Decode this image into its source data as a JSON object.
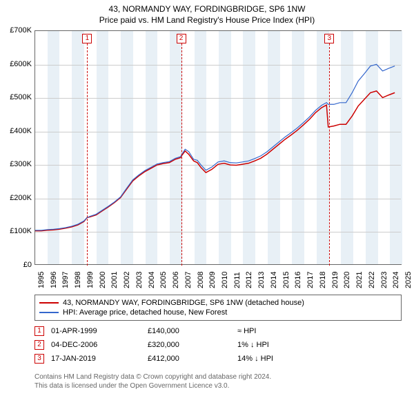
{
  "title_line1": "43, NORMANDY WAY, FORDINGBRIDGE, SP6 1NW",
  "title_line2": "Price paid vs. HM Land Registry's House Price Index (HPI)",
  "chart": {
    "type": "line",
    "background_color": "#ffffff",
    "border_color": "#666666",
    "shade_band_color": "#e8f0f6",
    "grid_color": "#cccccc",
    "x_min": 1995,
    "x_max": 2025,
    "x_tick_step": 1,
    "y_min": 0,
    "y_max": 700000,
    "y_tick_step": 100000,
    "y_tick_labels": [
      "£0",
      "£100K",
      "£200K",
      "£300K",
      "£400K",
      "£500K",
      "£600K",
      "£700K"
    ],
    "x_tick_labels": [
      "1995",
      "1996",
      "1997",
      "1998",
      "1999",
      "2000",
      "2001",
      "2002",
      "2003",
      "2004",
      "2005",
      "2006",
      "2007",
      "2008",
      "2009",
      "2010",
      "2011",
      "2012",
      "2013",
      "2014",
      "2015",
      "2016",
      "2017",
      "2018",
      "2019",
      "2020",
      "2021",
      "2022",
      "2023",
      "2024",
      "2025"
    ],
    "series": [
      {
        "name": "property",
        "color": "#cc0000",
        "width": 1.5,
        "points": [
          [
            1995.0,
            100000
          ],
          [
            1995.5,
            100000
          ],
          [
            1996.0,
            102000
          ],
          [
            1996.5,
            103000
          ],
          [
            1997.0,
            105000
          ],
          [
            1997.5,
            108000
          ],
          [
            1998.0,
            112000
          ],
          [
            1998.5,
            118000
          ],
          [
            1999.0,
            128000
          ],
          [
            1999.25,
            140000
          ],
          [
            1999.5,
            142000
          ],
          [
            2000.0,
            148000
          ],
          [
            2000.5,
            160000
          ],
          [
            2001.0,
            172000
          ],
          [
            2001.5,
            185000
          ],
          [
            2002.0,
            200000
          ],
          [
            2002.5,
            225000
          ],
          [
            2003.0,
            250000
          ],
          [
            2003.5,
            265000
          ],
          [
            2004.0,
            278000
          ],
          [
            2004.5,
            288000
          ],
          [
            2005.0,
            298000
          ],
          [
            2005.5,
            302000
          ],
          [
            2006.0,
            305000
          ],
          [
            2006.5,
            315000
          ],
          [
            2006.93,
            320000
          ],
          [
            2007.0,
            325000
          ],
          [
            2007.3,
            340000
          ],
          [
            2007.6,
            330000
          ],
          [
            2008.0,
            310000
          ],
          [
            2008.3,
            305000
          ],
          [
            2008.6,
            290000
          ],
          [
            2009.0,
            275000
          ],
          [
            2009.5,
            285000
          ],
          [
            2010.0,
            300000
          ],
          [
            2010.5,
            303000
          ],
          [
            2011.0,
            298000
          ],
          [
            2011.5,
            297000
          ],
          [
            2012.0,
            300000
          ],
          [
            2012.5,
            303000
          ],
          [
            2013.0,
            310000
          ],
          [
            2013.5,
            318000
          ],
          [
            2014.0,
            330000
          ],
          [
            2014.5,
            345000
          ],
          [
            2015.0,
            360000
          ],
          [
            2015.5,
            375000
          ],
          [
            2016.0,
            388000
          ],
          [
            2016.5,
            402000
          ],
          [
            2017.0,
            418000
          ],
          [
            2017.5,
            435000
          ],
          [
            2018.0,
            455000
          ],
          [
            2018.5,
            470000
          ],
          [
            2018.9,
            478000
          ],
          [
            2019.04,
            412000
          ],
          [
            2019.5,
            415000
          ],
          [
            2020.0,
            420000
          ],
          [
            2020.5,
            420000
          ],
          [
            2021.0,
            445000
          ],
          [
            2021.5,
            475000
          ],
          [
            2022.0,
            495000
          ],
          [
            2022.5,
            515000
          ],
          [
            2023.0,
            520000
          ],
          [
            2023.5,
            500000
          ],
          [
            2024.0,
            508000
          ],
          [
            2024.5,
            515000
          ]
        ]
      },
      {
        "name": "hpi",
        "color": "#3366cc",
        "width": 1.2,
        "points": [
          [
            1995.0,
            102000
          ],
          [
            1995.5,
            102000
          ],
          [
            1996.0,
            104000
          ],
          [
            1996.5,
            105000
          ],
          [
            1997.0,
            107000
          ],
          [
            1997.5,
            110000
          ],
          [
            1998.0,
            114000
          ],
          [
            1998.5,
            120000
          ],
          [
            1999.0,
            130000
          ],
          [
            1999.25,
            140000
          ],
          [
            1999.5,
            144000
          ],
          [
            2000.0,
            150000
          ],
          [
            2000.5,
            162000
          ],
          [
            2001.0,
            174000
          ],
          [
            2001.5,
            187000
          ],
          [
            2002.0,
            202000
          ],
          [
            2002.5,
            228000
          ],
          [
            2003.0,
            253000
          ],
          [
            2003.5,
            268000
          ],
          [
            2004.0,
            281000
          ],
          [
            2004.5,
            291000
          ],
          [
            2005.0,
            301000
          ],
          [
            2005.5,
            305000
          ],
          [
            2006.0,
            308000
          ],
          [
            2006.5,
            318000
          ],
          [
            2006.93,
            323000
          ],
          [
            2007.0,
            328000
          ],
          [
            2007.3,
            345000
          ],
          [
            2007.6,
            338000
          ],
          [
            2008.0,
            315000
          ],
          [
            2008.3,
            312000
          ],
          [
            2008.6,
            298000
          ],
          [
            2009.0,
            282000
          ],
          [
            2009.5,
            292000
          ],
          [
            2010.0,
            307000
          ],
          [
            2010.5,
            310000
          ],
          [
            2011.0,
            305000
          ],
          [
            2011.5,
            304000
          ],
          [
            2012.0,
            307000
          ],
          [
            2012.5,
            310000
          ],
          [
            2013.0,
            317000
          ],
          [
            2013.5,
            325000
          ],
          [
            2014.0,
            337000
          ],
          [
            2014.5,
            352000
          ],
          [
            2015.0,
            367000
          ],
          [
            2015.5,
            382000
          ],
          [
            2016.0,
            395000
          ],
          [
            2016.5,
            409000
          ],
          [
            2017.0,
            425000
          ],
          [
            2017.5,
            442000
          ],
          [
            2018.0,
            462000
          ],
          [
            2018.5,
            477000
          ],
          [
            2018.9,
            485000
          ],
          [
            2019.04,
            480000
          ],
          [
            2019.5,
            480000
          ],
          [
            2020.0,
            485000
          ],
          [
            2020.5,
            485000
          ],
          [
            2021.0,
            515000
          ],
          [
            2021.5,
            550000
          ],
          [
            2022.0,
            572000
          ],
          [
            2022.5,
            595000
          ],
          [
            2023.0,
            600000
          ],
          [
            2023.5,
            580000
          ],
          [
            2024.0,
            588000
          ],
          [
            2024.5,
            595000
          ]
        ]
      }
    ],
    "markers": [
      {
        "num": "1",
        "x": 1999.25,
        "box_color": "#cc0000"
      },
      {
        "num": "2",
        "x": 2006.93,
        "box_color": "#cc0000"
      },
      {
        "num": "3",
        "x": 2019.04,
        "box_color": "#cc0000"
      }
    ]
  },
  "legend": {
    "items": [
      {
        "color": "#cc0000",
        "label": "43, NORMANDY WAY, FORDINGBRIDGE, SP6 1NW (detached house)"
      },
      {
        "color": "#3366cc",
        "label": "HPI: Average price, detached house, New Forest"
      }
    ]
  },
  "transactions": [
    {
      "num": "1",
      "date": "01-APR-1999",
      "price": "£140,000",
      "rel": "≈ HPI"
    },
    {
      "num": "2",
      "date": "04-DEC-2006",
      "price": "£320,000",
      "rel": "1% ↓ HPI"
    },
    {
      "num": "3",
      "date": "17-JAN-2019",
      "price": "£412,000",
      "rel": "14% ↓ HPI"
    }
  ],
  "footer_line1": "Contains HM Land Registry data © Crown copyright and database right 2024.",
  "footer_line2": "This data is licensed under the Open Government Licence v3.0."
}
